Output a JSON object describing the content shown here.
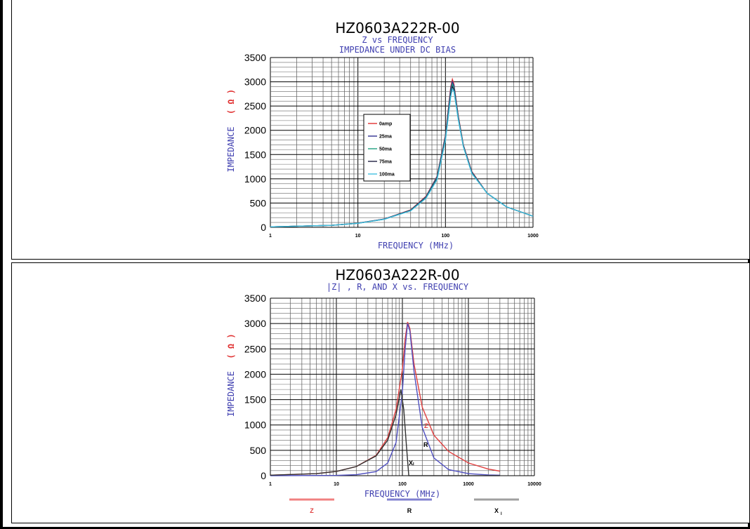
{
  "chart_data": [
    {
      "type": "line",
      "title": "HZ0603A222R-00",
      "subtitle": "Z  vs  FREQUENCY",
      "subtitle2": "IMPEDANCE  UNDER  DC  BIAS",
      "xlabel": "FREQUENCY (MHz)",
      "ylabel": "IMPEDANCE (Ω)",
      "ylabel_text": "IMPEDANCE",
      "ylabel_unit": "( Ω )",
      "xscale": "log",
      "xlim": [
        1,
        1000
      ],
      "ylim": [
        0,
        3500
      ],
      "xticks": [
        1,
        10,
        100,
        1000
      ],
      "xtick_labels": [
        "1",
        "10",
        "100",
        "1000"
      ],
      "yticks": [
        0,
        500,
        1000,
        1500,
        2000,
        2500,
        3000,
        3500
      ],
      "ytick_labels": [
        "0",
        "500",
        "1000",
        "1500",
        "2000",
        "2500",
        "3000",
        "3500"
      ],
      "grid": true,
      "legend_position": "center-left",
      "series": [
        {
          "name": "0amp",
          "color": "#e03030",
          "x": [
            1,
            5,
            10,
            20,
            40,
            60,
            80,
            100,
            115,
            120,
            125,
            140,
            160,
            200,
            300,
            500,
            1000
          ],
          "y": [
            10,
            40,
            85,
            170,
            360,
            640,
            1050,
            1900,
            2900,
            3050,
            2950,
            2300,
            1700,
            1150,
            700,
            420,
            230
          ]
        },
        {
          "name": "25ma",
          "color": "#303090",
          "x": [
            1,
            5,
            10,
            20,
            40,
            60,
            80,
            100,
            115,
            120,
            125,
            140,
            160,
            200,
            300,
            500,
            1000
          ],
          "y": [
            10,
            40,
            85,
            170,
            355,
            630,
            1040,
            1880,
            2860,
            3000,
            2920,
            2280,
            1690,
            1140,
            700,
            420,
            230
          ]
        },
        {
          "name": "50ma",
          "color": "#20a080",
          "x": [
            1,
            5,
            10,
            20,
            40,
            60,
            80,
            100,
            115,
            120,
            125,
            140,
            160,
            200,
            300,
            500,
            1000
          ],
          "y": [
            10,
            40,
            84,
            168,
            350,
            620,
            1020,
            1850,
            2800,
            2950,
            2880,
            2260,
            1680,
            1130,
            700,
            420,
            230
          ]
        },
        {
          "name": "75ma",
          "color": "#202040",
          "x": [
            1,
            5,
            10,
            20,
            40,
            60,
            80,
            100,
            115,
            120,
            125,
            140,
            160,
            200,
            300,
            500,
            1000
          ],
          "y": [
            10,
            40,
            84,
            166,
            345,
            610,
            1000,
            1820,
            2760,
            2900,
            2840,
            2240,
            1670,
            1120,
            700,
            420,
            230
          ]
        },
        {
          "name": "100ma",
          "color": "#40c0e0",
          "x": [
            1,
            5,
            10,
            20,
            40,
            60,
            80,
            100,
            115,
            120,
            125,
            140,
            160,
            200,
            300,
            500,
            1000
          ],
          "y": [
            10,
            40,
            83,
            165,
            340,
            600,
            980,
            1790,
            2700,
            2850,
            2800,
            2220,
            1660,
            1110,
            700,
            420,
            230
          ]
        }
      ]
    },
    {
      "type": "line",
      "title": "HZ0603A222R-00",
      "subtitle": "|Z|  ,  R,  AND  X  vs.  FREQUENCY",
      "xlabel": "FREQUENCY (MHz)",
      "ylabel": "IMPEDANCE (Ω)",
      "ylabel_text": "IMPEDANCE",
      "ylabel_unit": "( Ω )",
      "xscale": "log",
      "xlim": [
        1,
        10000
      ],
      "ylim": [
        0,
        3500
      ],
      "xticks": [
        1,
        10,
        100,
        1000,
        10000
      ],
      "xtick_labels": [
        "1",
        "10",
        "100",
        "1000",
        "10000"
      ],
      "yticks": [
        0,
        500,
        1000,
        1500,
        2000,
        2500,
        3000,
        3500
      ],
      "ytick_labels": [
        "0",
        "500",
        "1000",
        "1500",
        "2000",
        "2500",
        "3000",
        "3500"
      ],
      "grid": true,
      "legend_position": "bottom",
      "series": [
        {
          "name": "Z",
          "color": "#e04040",
          "label": "Z",
          "x": [
            1,
            5,
            10,
            20,
            40,
            60,
            80,
            100,
            110,
            120,
            130,
            150,
            200,
            300,
            500,
            1000,
            2000,
            3000
          ],
          "y": [
            10,
            40,
            85,
            180,
            400,
            750,
            1300,
            2100,
            2700,
            3030,
            2900,
            2200,
            1350,
            800,
            480,
            250,
            130,
            90
          ]
        },
        {
          "name": "R",
          "color": "#5050c0",
          "label": "R",
          "x": [
            1,
            10,
            20,
            40,
            60,
            80,
            100,
            110,
            120,
            130,
            150,
            200,
            300,
            500,
            1000,
            2000,
            3000
          ],
          "y": [
            0,
            5,
            20,
            80,
            250,
            650,
            1650,
            2500,
            3000,
            2850,
            2050,
            950,
            350,
            120,
            40,
            15,
            10
          ]
        },
        {
          "name": "Xₗ",
          "color": "#303030",
          "label": "Xₗ",
          "x": [
            1,
            5,
            10,
            20,
            40,
            60,
            80,
            95,
            105,
            115,
            125,
            150,
            200,
            300,
            500,
            1000,
            3000
          ],
          "y": [
            10,
            40,
            85,
            180,
            390,
            700,
            1200,
            1700,
            1300,
            600,
            0,
            0,
            0,
            0,
            0,
            0,
            0
          ]
        }
      ],
      "legend": [
        {
          "label": "Z",
          "color": "#f08080"
        },
        {
          "label": "R",
          "color": "#8080d0"
        },
        {
          "label": "X",
          "sub": "l",
          "color": "#a0a0a0"
        }
      ]
    }
  ]
}
